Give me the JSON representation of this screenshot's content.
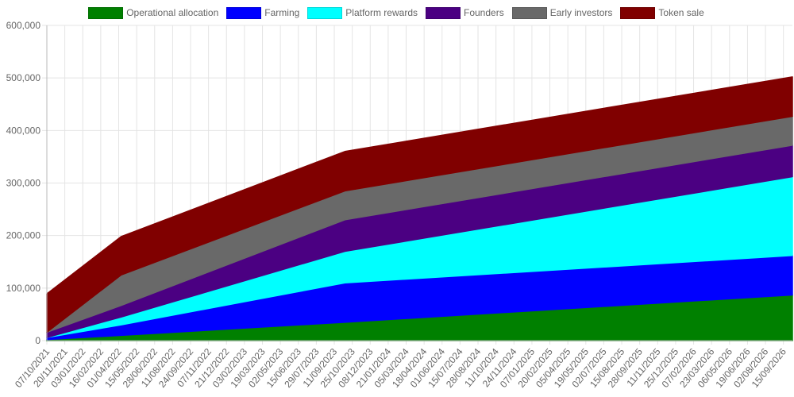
{
  "chart_data": {
    "type": "area",
    "stacked": true,
    "legend_position": "top",
    "grid": true,
    "ylim": [
      0,
      600000
    ],
    "y_ticks": [
      0,
      100000,
      200000,
      300000,
      400000,
      500000,
      600000
    ],
    "y_tick_labels": [
      "0",
      "100,000",
      "200,000",
      "300,000",
      "400,000",
      "500,000",
      "600,000"
    ],
    "x_range": [
      "2021-10-07",
      "2026-10-07"
    ],
    "x_ticks": [
      "07/10/2021",
      "20/11/2021",
      "03/01/2022",
      "16/02/2022",
      "01/04/2022",
      "15/05/2022",
      "28/06/2022",
      "11/08/2022",
      "24/09/2022",
      "07/11/2022",
      "21/12/2022",
      "03/02/2023",
      "19/03/2023",
      "02/05/2023",
      "15/06/2023",
      "29/07/2023",
      "11/09/2023",
      "25/10/2023",
      "08/12/2023",
      "21/01/2024",
      "05/03/2024",
      "18/04/2024",
      "01/06/2024",
      "15/07/2024",
      "28/08/2024",
      "11/10/2024",
      "24/11/2024",
      "07/01/2025",
      "20/02/2025",
      "05/04/2025",
      "19/05/2025",
      "02/07/2025",
      "15/08/2025",
      "28/09/2025",
      "11/11/2025",
      "25/12/2025",
      "07/02/2026",
      "23/03/2026",
      "06/05/2026",
      "19/06/2026",
      "02/08/2026",
      "15/09/2026"
    ],
    "x": [
      "2021-10-07",
      "2022-04-07",
      "2023-10-07",
      "2026-10-07"
    ],
    "series": [
      {
        "name": "Operational allocation",
        "color": "#008000",
        "values": [
          2000,
          10000,
          35000,
          87000
        ]
      },
      {
        "name": "Farming",
        "color": "#0000ff",
        "values": [
          4000,
          20000,
          75000,
          75000
        ]
      },
      {
        "name": "Platform rewards",
        "color": "#00ffff",
        "values": [
          0,
          15000,
          60000,
          150000
        ]
      },
      {
        "name": "Founders",
        "color": "#4b0082",
        "values": [
          10000,
          22000,
          60000,
          60000
        ]
      },
      {
        "name": "Early investors",
        "color": "#696969",
        "values": [
          0,
          58000,
          55000,
          55000
        ]
      },
      {
        "name": "Token sale",
        "color": "#800000",
        "values": [
          73000,
          73000,
          75000,
          75000
        ]
      }
    ]
  }
}
